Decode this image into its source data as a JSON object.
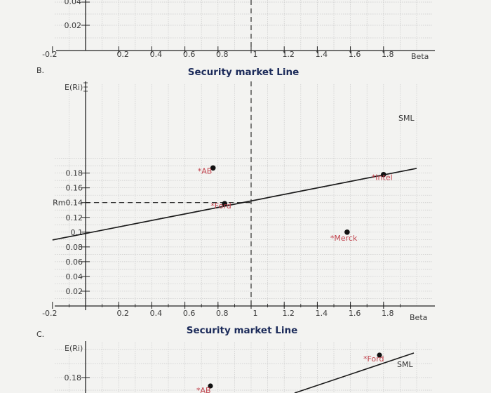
{
  "colors": {
    "background": "#f3f3f1",
    "grid": "#c9c9c9",
    "axis": "#222222",
    "line": "#1a1a1a",
    "point": "#111111",
    "point_label": "#c0414b",
    "title": "#1c2b5a"
  },
  "top_partial": {
    "y_tick_labels": [
      "0.04",
      "0.02"
    ],
    "x_tick_labels": [
      "-0.2",
      "0.2",
      "0.4",
      "0.6",
      "0.8",
      "1",
      "1.2",
      "1.4",
      "1.6",
      "1.8"
    ],
    "x_axis_label": "Beta"
  },
  "section_b": {
    "label": "B.",
    "chart_data": {
      "type": "scatter",
      "title": "Security market Line",
      "xlabel": "Beta",
      "ylabel": "E(Ri)",
      "xlim": [
        -0.2,
        2.0
      ],
      "ylim": [
        0.0,
        0.2
      ],
      "grid": true,
      "x_tick_labels": [
        "-0.2",
        "0.2",
        "0.4",
        "0.6",
        "0.8",
        "1",
        "1.2",
        "1.4",
        "1.6",
        "1.8"
      ],
      "y_tick_labels": [
        "0.18",
        "0.16",
        "Rm0.14",
        "0.12",
        "0.1",
        "0.08",
        "0.06",
        "0.04",
        "0.02"
      ],
      "series": [
        {
          "name": "SML",
          "type": "line",
          "x": [
            -0.2,
            2.0
          ],
          "y": [
            0.0894,
            0.1864
          ]
        }
      ],
      "points": [
        {
          "label": "AB",
          "x": 0.77,
          "y": 0.187
        },
        {
          "label": "Intel",
          "x": 1.8,
          "y": 0.178
        },
        {
          "label": "Ford",
          "x": 0.84,
          "y": 0.1386
        },
        {
          "label": "Merck",
          "x": 1.58,
          "y": 0.1
        }
      ],
      "market_reference": {
        "x": 1.0,
        "y": 0.14
      }
    }
  },
  "section_c": {
    "label": "C.",
    "chart_data": {
      "type": "scatter",
      "title": "Security market Line",
      "ylabel": "E(Ri)",
      "y_tick_labels": [
        "0.18"
      ],
      "series": [
        {
          "name": "SML",
          "type": "line"
        }
      ],
      "points": [
        {
          "label": "Ford"
        },
        {
          "label": "AB"
        }
      ]
    }
  }
}
